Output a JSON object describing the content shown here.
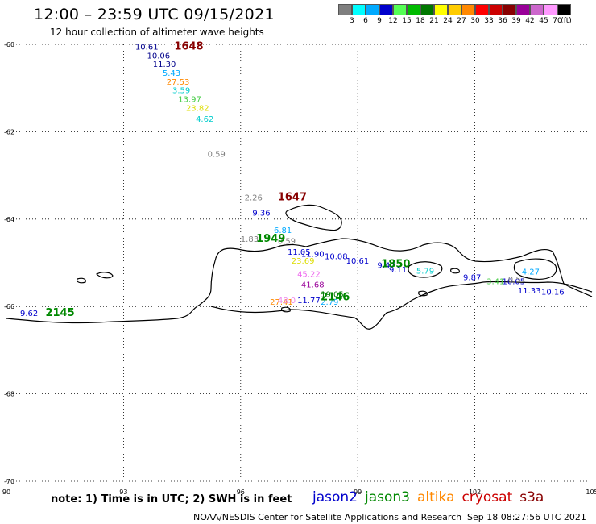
{
  "header": {
    "title": "12:00 – 23:59 UTC 09/15/2021",
    "subtitle": "12 hour collection of altimeter wave heights"
  },
  "colorbar": {
    "labels": [
      "3",
      "6",
      "9",
      "12",
      "15",
      "18",
      "21",
      "24",
      "27",
      "30",
      "33",
      "36",
      "39",
      "42",
      "45",
      "70",
      "(ft)"
    ],
    "colors": [
      "#7f7f7f",
      "#00ffff",
      "#00aaff",
      "#0000cc",
      "#55ff55",
      "#00bb00",
      "#007700",
      "#ffff00",
      "#ffcc00",
      "#ff8800",
      "#ff0000",
      "#cc0000",
      "#880000",
      "#990099",
      "#cc66cc",
      "#ff99ff",
      "#000000"
    ]
  },
  "footer": {
    "note": "note:  1) Time is in UTC;  2) SWH is in feet",
    "credit": "NOAA/NESDIS Center for Satellite Applications and Research",
    "timestamp": "Sep 18 08:27:56 UTC 2021"
  },
  "legend": [
    {
      "name": "jason2",
      "color": "#0000cc"
    },
    {
      "name": "jason3",
      "color": "#008800"
    },
    {
      "name": "altika",
      "color": "#ff8800"
    },
    {
      "name": "cryosat",
      "color": "#cc0000"
    },
    {
      "name": "s3a",
      "color": "#880000"
    }
  ],
  "chart_data": {
    "type": "scatter",
    "x_ticks": [
      "90",
      "93",
      "96",
      "99",
      "102",
      "105"
    ],
    "y_ticks": [
      "-60",
      "-62",
      "-64",
      "-66",
      "-68",
      "-70"
    ],
    "xlim": [
      90,
      105
    ],
    "ylim": [
      -70,
      -60
    ],
    "grid": true,
    "points": [
      {
        "lon": 93.3,
        "lat": -60.12,
        "value": "10.61",
        "color": "#00008b"
      },
      {
        "lon": 93.6,
        "lat": -60.32,
        "value": "10.06",
        "color": "#00008b"
      },
      {
        "lon": 93.75,
        "lat": -60.52,
        "value": "11.30",
        "color": "#00008b"
      },
      {
        "lon": 94.0,
        "lat": -60.72,
        "value": "5.43",
        "color": "#00aaff"
      },
      {
        "lon": 94.1,
        "lat": -60.92,
        "value": "27.53",
        "color": "#ff8800"
      },
      {
        "lon": 94.25,
        "lat": -61.12,
        "value": "3.59",
        "color": "#00cccc"
      },
      {
        "lon": 94.4,
        "lat": -61.32,
        "value": "13.97",
        "color": "#44cc44"
      },
      {
        "lon": 94.6,
        "lat": -61.52,
        "value": "23.82",
        "color": "#dddd00"
      },
      {
        "lon": 94.85,
        "lat": -61.77,
        "value": "4.62",
        "color": "#00cccc"
      },
      {
        "lon": 95.15,
        "lat": -62.57,
        "value": "0.59",
        "color": "#7f7f7f"
      },
      {
        "lon": 96.1,
        "lat": -63.57,
        "value": "2.26",
        "color": "#7f7f7f"
      },
      {
        "lon": 96.3,
        "lat": -63.92,
        "value": "9.36",
        "color": "#0000cc"
      },
      {
        "lon": 96.0,
        "lat": -64.52,
        "value": "1.83",
        "color": "#7f7f7f"
      },
      {
        "lon": 96.85,
        "lat": -64.32,
        "value": "6.81",
        "color": "#00aaff"
      },
      {
        "lon": 96.95,
        "lat": -64.57,
        "value": "0.59",
        "color": "#7f7f7f"
      },
      {
        "lon": 97.2,
        "lat": -64.82,
        "value": "11.05",
        "color": "#0000cc"
      },
      {
        "lon": 97.55,
        "lat": -64.86,
        "value": "11.90",
        "color": "#0000cc"
      },
      {
        "lon": 97.3,
        "lat": -65.02,
        "value": "23.69",
        "color": "#dddd00"
      },
      {
        "lon": 98.15,
        "lat": -64.92,
        "value": "10.08",
        "color": "#0000cc"
      },
      {
        "lon": 98.7,
        "lat": -65.02,
        "value": "10.61",
        "color": "#0000cc"
      },
      {
        "lon": 97.45,
        "lat": -65.32,
        "value": "45.22",
        "color": "#ee66ee"
      },
      {
        "lon": 97.55,
        "lat": -65.56,
        "value": "41.68",
        "color": "#990099"
      },
      {
        "lon": 98.05,
        "lat": -65.78,
        "value": "19.05",
        "color": "#007700"
      },
      {
        "lon": 98.05,
        "lat": -65.96,
        "value": "2.79",
        "color": "#00aaff"
      },
      {
        "lon": 97.45,
        "lat": -65.92,
        "value": "11.77",
        "color": "#0000cc"
      },
      {
        "lon": 96.75,
        "lat": -65.96,
        "value": "27.41",
        "color": "#ff8800"
      },
      {
        "lon": 96.95,
        "lat": -65.92,
        "value": "48.0",
        "color": "#ee88ee"
      },
      {
        "lon": 99.5,
        "lat": -65.12,
        "value": "9.47",
        "color": "#0000cc"
      },
      {
        "lon": 99.8,
        "lat": -65.22,
        "value": "9.11",
        "color": "#0000cc"
      },
      {
        "lon": 100.5,
        "lat": -65.25,
        "value": "5.79",
        "color": "#00cccc"
      },
      {
        "lon": 101.7,
        "lat": -65.4,
        "value": "9.87",
        "color": "#0000cc"
      },
      {
        "lon": 102.3,
        "lat": -65.49,
        "value": "3.41",
        "color": "#44cc44"
      },
      {
        "lon": 102.7,
        "lat": -65.49,
        "value": "10.05",
        "color": "#0000cc"
      },
      {
        "lon": 102.85,
        "lat": -65.44,
        "value": "0.51",
        "color": "#7f7f7f"
      },
      {
        "lon": 103.2,
        "lat": -65.27,
        "value": "4.27",
        "color": "#00aaff"
      },
      {
        "lon": 103.1,
        "lat": -65.7,
        "value": "11.33",
        "color": "#0000cc"
      },
      {
        "lon": 103.7,
        "lat": -65.73,
        "value": "10.16",
        "color": "#0000cc"
      },
      {
        "lon": 90.35,
        "lat": -66.22,
        "value": "9.62",
        "color": "#0000cc"
      }
    ],
    "time_labels": [
      {
        "lon": 94.3,
        "lat": -60.12,
        "text": "1648",
        "color": "#880000"
      },
      {
        "lon": 96.95,
        "lat": -63.57,
        "text": "1647",
        "color": "#880000"
      },
      {
        "lon": 96.4,
        "lat": -64.52,
        "text": "1949",
        "color": "#008800"
      },
      {
        "lon": 99.6,
        "lat": -65.1,
        "text": "1850",
        "color": "#008800"
      },
      {
        "lon": 98.05,
        "lat": -65.86,
        "text": "2146",
        "color": "#008800"
      },
      {
        "lon": 91.0,
        "lat": -66.22,
        "text": "2145",
        "color": "#008800"
      }
    ]
  }
}
